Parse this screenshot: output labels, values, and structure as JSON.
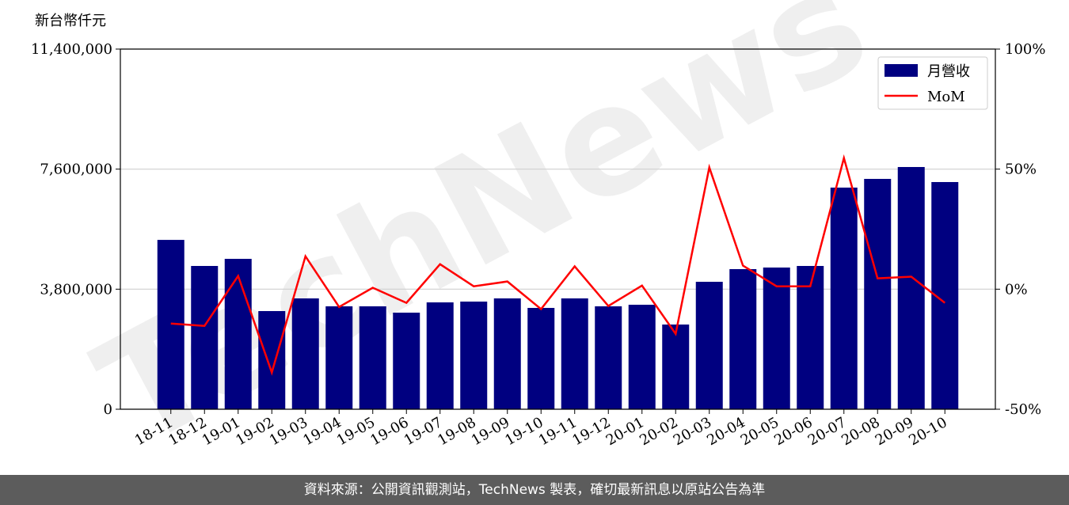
{
  "chart_data": {
    "type": "bar",
    "y_label": "新台幣仟元",
    "watermark": "TechNews",
    "footer": "資料來源：公開資訊觀測站，TechNews 製表，確切最新訊息以原站公告為準",
    "categories": [
      "18-11",
      "18-12",
      "19-01",
      "19-02",
      "19-03",
      "19-04",
      "19-05",
      "19-06",
      "19-07",
      "19-08",
      "19-09",
      "19-10",
      "19-11",
      "19-12",
      "20-01",
      "20-02",
      "20-03",
      "20-04",
      "20-05",
      "20-06",
      "20-07",
      "20-08",
      "20-09",
      "20-10"
    ],
    "series": [
      {
        "name": "月營收",
        "type": "bar",
        "color": "#000080",
        "values": [
          5360000,
          4535000,
          4760000,
          3107000,
          3508000,
          3257000,
          3257000,
          3057000,
          3382000,
          3407000,
          3508000,
          3207000,
          3508000,
          3257000,
          3307000,
          2681000,
          4034000,
          4435000,
          4485000,
          4535000,
          7015000,
          7291000,
          7667000,
          7191000
        ]
      },
      {
        "name": "MoM",
        "type": "line",
        "axis": "y2",
        "color": "#ff0000",
        "values": [
          -14.3,
          -15.3,
          5.5,
          -34.7,
          13.7,
          -7.4,
          0.6,
          -5.7,
          10.4,
          1.2,
          3.2,
          -8.3,
          9.5,
          -7.0,
          1.5,
          -18.6,
          50.7,
          9.8,
          1.2,
          1.2,
          54.6,
          4.5,
          5.2,
          -5.7
        ]
      }
    ],
    "ylim": [
      0,
      11400000
    ],
    "yticks": [
      0,
      {
        "value": 3800000,
        "label": "3,800,000"
      },
      {
        "value": 7600000,
        "label": "7,600,000"
      },
      {
        "value": 11400000,
        "label": "11,400,000"
      }
    ],
    "y2lim": [
      -50,
      100
    ],
    "y2ticks": [
      {
        "value": -50,
        "label": "-50%"
      },
      {
        "value": 0,
        "label": "0%"
      },
      {
        "value": 50,
        "label": "50%"
      },
      {
        "value": 100,
        "label": "100%"
      }
    ],
    "grid": true,
    "legend": "upper right"
  }
}
